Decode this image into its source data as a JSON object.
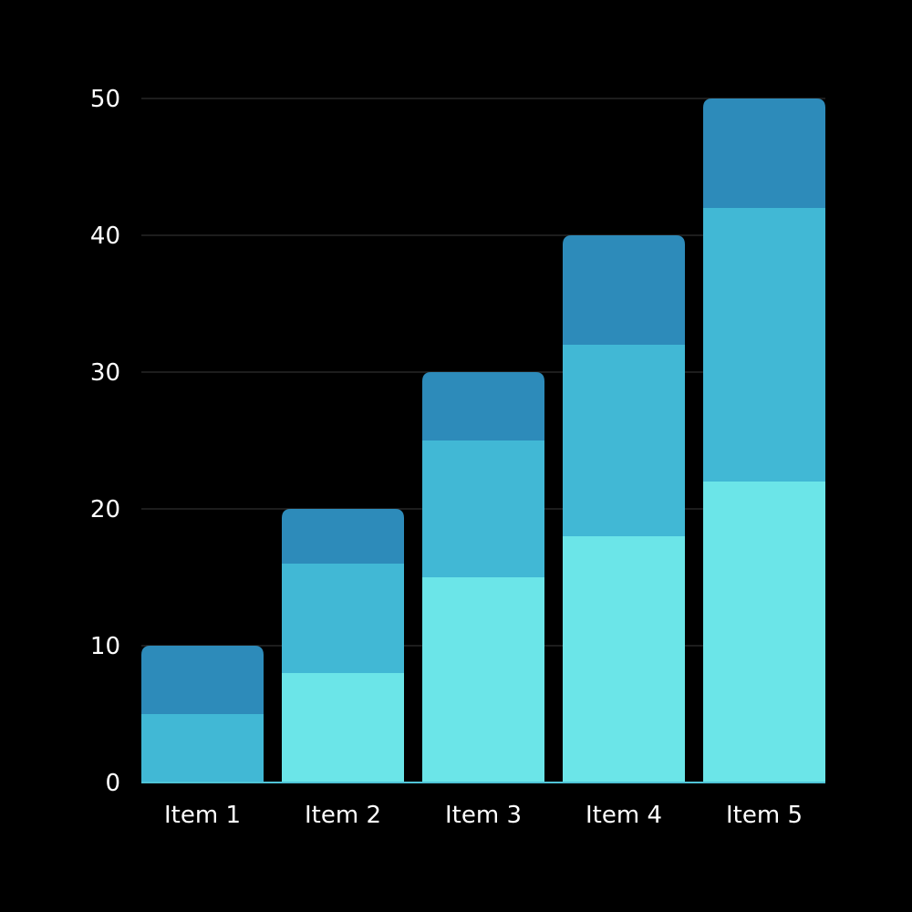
{
  "chart_data": {
    "type": "bar",
    "stacked": true,
    "title": "",
    "xlabel": "",
    "ylabel": "",
    "categories": [
      "Item 1",
      "Item 2",
      "Item 3",
      "Item 4",
      "Item 5"
    ],
    "series": [
      {
        "values": [
          0,
          8,
          15,
          18,
          22
        ],
        "color": "#6be5e8"
      },
      {
        "values": [
          5,
          8,
          10,
          14,
          20
        ],
        "color": "#41b8d5"
      },
      {
        "values": [
          5,
          4,
          5,
          8,
          8
        ],
        "color": "#2d8bba"
      }
    ],
    "ylim": [
      0,
      50
    ],
    "yticks": [
      "0",
      "10",
      "20",
      "30",
      "40",
      "50"
    ],
    "grid": true,
    "legend": "none"
  },
  "colors": {
    "background": "#000000",
    "gridline": "#3a3a3a",
    "axis_line": "#4fc3d6",
    "text": "#ffffff"
  }
}
